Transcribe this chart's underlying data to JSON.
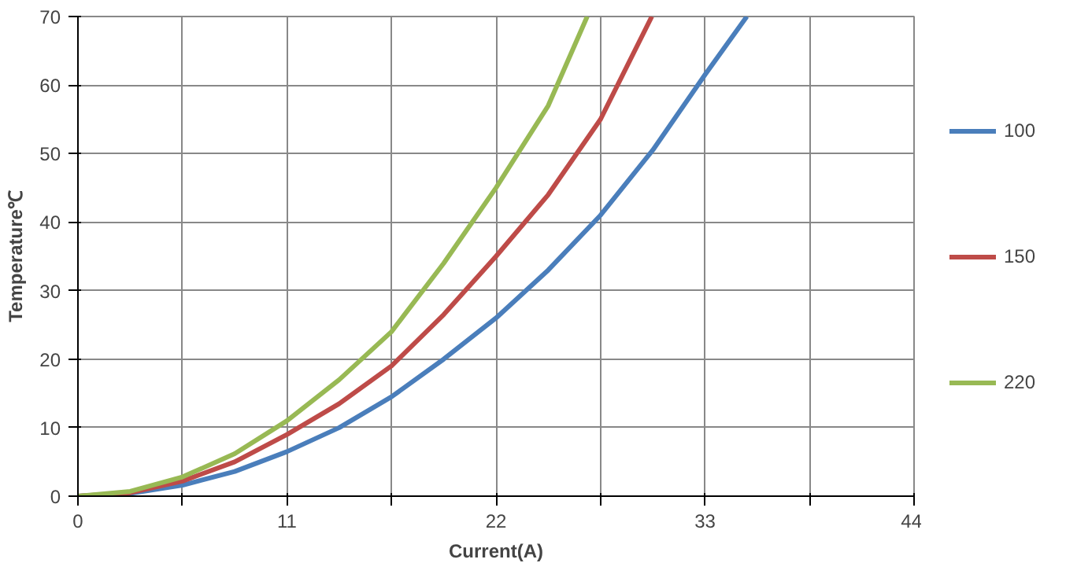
{
  "chart_data": {
    "type": "line",
    "xlabel": "Current(A)",
    "ylabel": "Temperature℃",
    "xlim": [
      0,
      44
    ],
    "ylim": [
      0,
      70
    ],
    "xticks": [
      0,
      {
        "value": 5.5,
        "label": null
      },
      11,
      {
        "value": 16.5,
        "label": null
      },
      22,
      {
        "value": 27.5,
        "label": null
      },
      33,
      {
        "value": 38.5,
        "label": null
      },
      44
    ],
    "yticks": [
      0,
      10,
      20,
      30,
      40,
      50,
      60,
      70
    ],
    "grid": true,
    "legend": "right",
    "marker": "none",
    "line_style": "solid",
    "series": [
      {
        "name": "100",
        "color": "#4a7ebb",
        "x": [
          0,
          2.75,
          5.5,
          8.25,
          11,
          13.75,
          16.5,
          19.25,
          22,
          24.75,
          27.5,
          30.25,
          33,
          35.2
        ],
        "values": [
          0,
          0.4,
          1.6,
          3.6,
          6.5,
          10,
          14.5,
          20,
          26,
          33,
          41,
          50.5,
          61.5,
          70
        ]
      },
      {
        "name": "150",
        "color": "#be4b48",
        "x": [
          0,
          2.75,
          5.5,
          8.25,
          11,
          13.75,
          16.5,
          19.25,
          22,
          24.75,
          27.5,
          30.2
        ],
        "values": [
          0,
          0.5,
          2.2,
          5,
          9,
          13.5,
          19,
          26.5,
          35,
          44,
          55,
          70
        ]
      },
      {
        "name": "220",
        "color": "#98b954",
        "x": [
          0,
          2.75,
          5.5,
          8.25,
          11,
          13.75,
          16.5,
          19.25,
          22,
          24.75,
          26.8
        ],
        "values": [
          0,
          0.7,
          2.8,
          6.2,
          11,
          17,
          24,
          34,
          45,
          57,
          70
        ]
      }
    ]
  }
}
